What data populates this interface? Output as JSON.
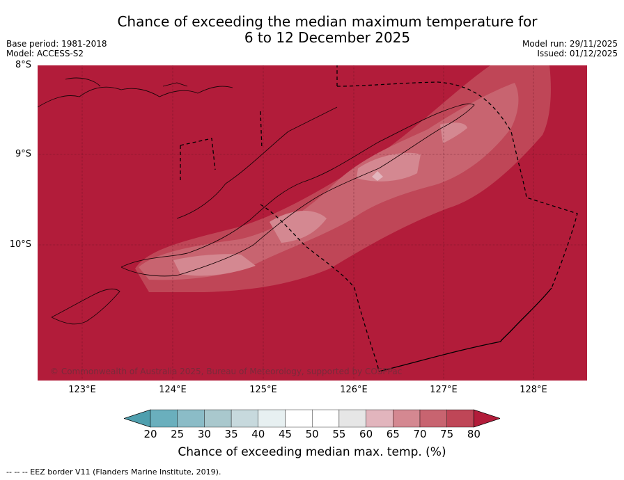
{
  "title": {
    "line1": "Chance of exceeding the median maximum temperature for",
    "line2": "6 to 12 December 2025"
  },
  "info_left": {
    "base_period": "Base period: 1981-2018",
    "model": "Model: ACCESS-S2"
  },
  "info_right": {
    "model_run": "Model run: 29/11/2025",
    "issued": "Issued: 01/12/2025"
  },
  "map": {
    "lat_labels": [
      "8°S",
      "9°S",
      "10°S"
    ],
    "lon_labels": [
      "123°E",
      "124°E",
      "125°E",
      "126°E",
      "127°E",
      "128°E"
    ],
    "copyright": "© Commonwealth of Australia 2025, Bureau of Meteorology, supported by COSPPac",
    "background_color": "#b21c3a"
  },
  "colorbar": {
    "ticks": [
      "20",
      "25",
      "30",
      "35",
      "40",
      "45",
      "50",
      "55",
      "60",
      "65",
      "70",
      "75",
      "80"
    ],
    "colors": [
      "#4f9fae",
      "#6aafbd",
      "#8bbcc7",
      "#a9c8cd",
      "#c7d9dd",
      "#e7f0f1",
      "#ffffff",
      "#ffffff",
      "#e6e6e6",
      "#e2b5bd",
      "#d48891",
      "#c86470",
      "#bf4657",
      "#b21c3a"
    ],
    "label": "Chance of exceeding median max. temp. (%)"
  },
  "footnote": "--  --  -- EEZ border V11 (Flanders Marine Institute, 2019)."
}
